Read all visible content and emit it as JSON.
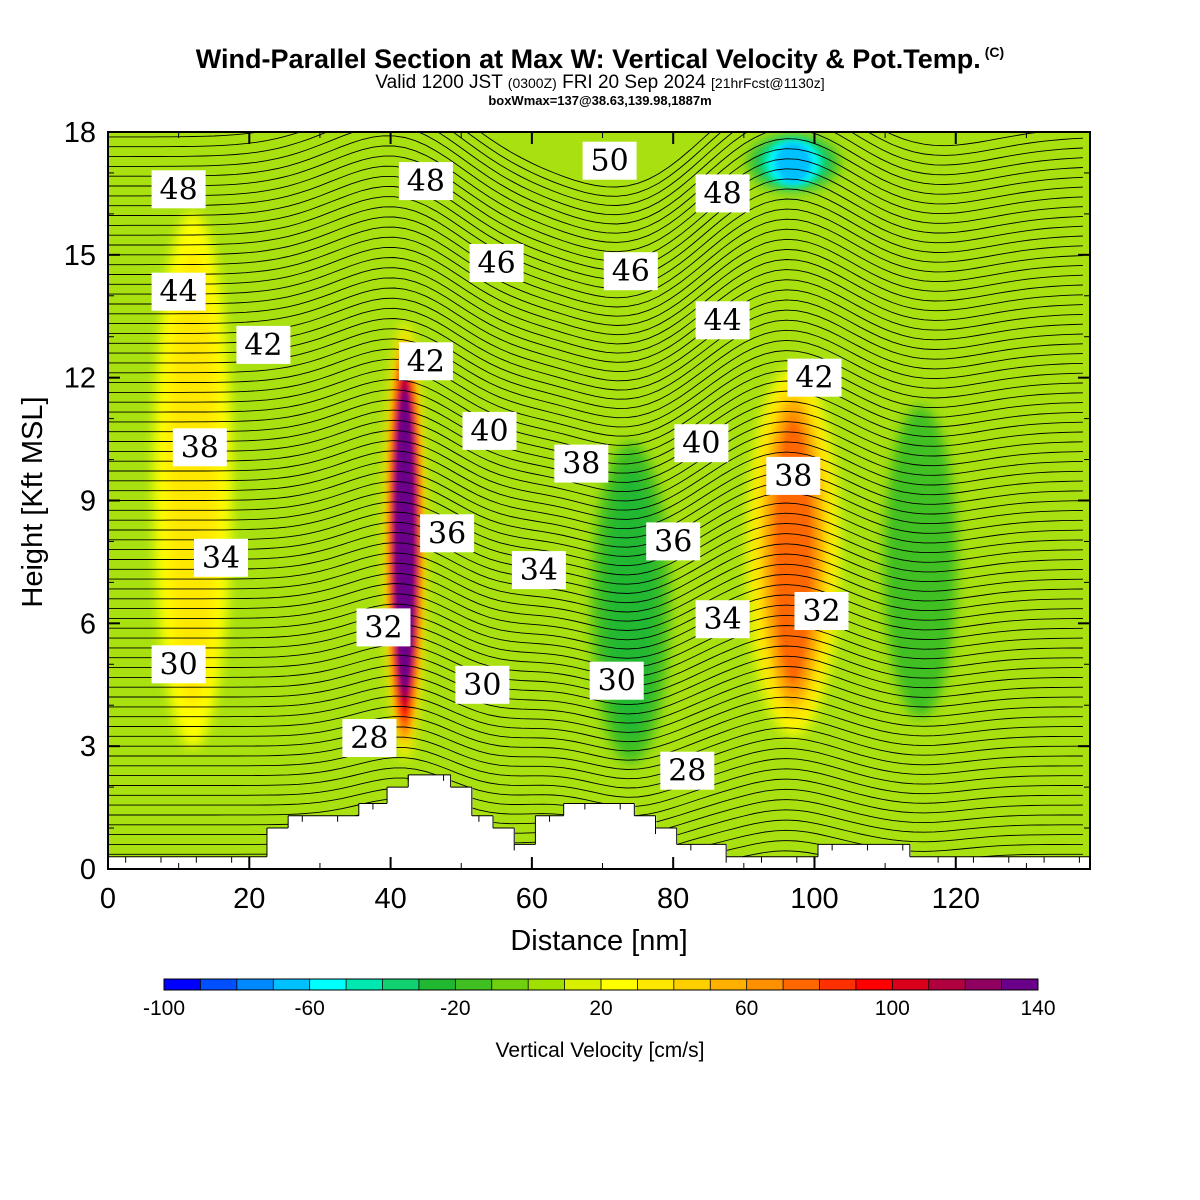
{
  "header": {
    "title": "Wind-Parallel Section at Max W: Vertical Velocity & Pot.Temp.",
    "copyright": "(C)",
    "valid_prefix": "Valid 1200 JST",
    "valid_utc": "(0300Z)",
    "valid_date": "FRI 20 Sep 2024",
    "forecast_info": "[21hrFcst@1130z]",
    "box_info": "boxWmax=137@38.63,139.98,1887m"
  },
  "chart_data": {
    "type": "heatmap",
    "xlabel": "Distance [nm]",
    "ylabel": "Height [Kft MSL]",
    "xlim": [
      0,
      139
    ],
    "ylim": [
      0,
      18
    ],
    "x_ticks": [
      "0",
      "20",
      "40",
      "60",
      "80",
      "100",
      "120"
    ],
    "y_ticks": [
      "0",
      "3",
      "6",
      "9",
      "12",
      "15",
      "18"
    ],
    "colorbar": {
      "label": "Vertical Velocity [cm/s]",
      "range": [
        -100,
        140
      ],
      "step": 10,
      "tick_labels": [
        "-100",
        "-60",
        "-20",
        "20",
        "60",
        "100",
        "140"
      ],
      "colors": [
        "#0000ff",
        "#0050ff",
        "#0088ff",
        "#00c0ff",
        "#00ffff",
        "#00e8b0",
        "#10d070",
        "#20b830",
        "#40c020",
        "#70d010",
        "#a0e000",
        "#d8f000",
        "#ffff00",
        "#ffe800",
        "#ffd000",
        "#ffb000",
        "#ff9000",
        "#ff6800",
        "#ff3000",
        "#ff0000",
        "#d8001a",
        "#b00040",
        "#900060",
        "#6a008a"
      ]
    },
    "vertical_velocity_features": [
      {
        "name": "updraft core",
        "x": 42,
        "z_min": 2.5,
        "z_max": 13.5,
        "max": 137
      },
      {
        "name": "updraft",
        "x": 97,
        "z_min": 3,
        "z_max": 12.5,
        "max": 70
      },
      {
        "name": "updraft",
        "x": 12,
        "z_min": 2,
        "z_max": 17,
        "max": 30
      },
      {
        "name": "downdraft",
        "x": 74,
        "z_min": 2,
        "z_max": 11,
        "max": -30
      },
      {
        "name": "downdraft",
        "x": 97,
        "z_min": 16.5,
        "z_max": 18,
        "max": -70
      },
      {
        "name": "downdraft",
        "x": 115,
        "z_min": 3,
        "z_max": 12,
        "max": -25
      }
    ],
    "theta_contour_labels": [
      {
        "value": "48",
        "x": 10,
        "z": 16.6
      },
      {
        "value": "48",
        "x": 45,
        "z": 16.8
      },
      {
        "value": "50",
        "x": 71,
        "z": 17.3
      },
      {
        "value": "48",
        "x": 87,
        "z": 16.5
      },
      {
        "value": "46",
        "x": 55,
        "z": 14.8
      },
      {
        "value": "46",
        "x": 74,
        "z": 14.6
      },
      {
        "value": "44",
        "x": 10,
        "z": 14.1
      },
      {
        "value": "44",
        "x": 87,
        "z": 13.4
      },
      {
        "value": "42",
        "x": 22,
        "z": 12.8
      },
      {
        "value": "42",
        "x": 45,
        "z": 12.4
      },
      {
        "value": "42",
        "x": 100,
        "z": 12
      },
      {
        "value": "40",
        "x": 54,
        "z": 10.7
      },
      {
        "value": "40",
        "x": 84,
        "z": 10.4
      },
      {
        "value": "38",
        "x": 13,
        "z": 10.3
      },
      {
        "value": "38",
        "x": 67,
        "z": 9.9
      },
      {
        "value": "38",
        "x": 97,
        "z": 9.6
      },
      {
        "value": "36",
        "x": 48,
        "z": 8.2
      },
      {
        "value": "36",
        "x": 80,
        "z": 8
      },
      {
        "value": "34",
        "x": 16,
        "z": 7.6
      },
      {
        "value": "34",
        "x": 61,
        "z": 7.3
      },
      {
        "value": "34",
        "x": 87,
        "z": 6.1
      },
      {
        "value": "32",
        "x": 39,
        "z": 5.9
      },
      {
        "value": "32",
        "x": 101,
        "z": 6.3
      },
      {
        "value": "30",
        "x": 10,
        "z": 5
      },
      {
        "value": "30",
        "x": 53,
        "z": 4.5
      },
      {
        "value": "30",
        "x": 72,
        "z": 4.6
      },
      {
        "value": "28",
        "x": 37,
        "z": 3.2
      },
      {
        "value": "28",
        "x": 82,
        "z": 2.4
      }
    ],
    "terrain": [
      {
        "x0": 0,
        "x1": 22.5,
        "z": 0.3
      },
      {
        "x0": 22.5,
        "x1": 25.5,
        "z": 1.0
      },
      {
        "x0": 25.5,
        "x1": 35.5,
        "z": 1.3
      },
      {
        "x0": 35.5,
        "x1": 39.5,
        "z": 1.6
      },
      {
        "x0": 39.5,
        "x1": 42.5,
        "z": 2.0
      },
      {
        "x0": 42.5,
        "x1": 48.5,
        "z": 2.3
      },
      {
        "x0": 48.5,
        "x1": 51.5,
        "z": 2.0
      },
      {
        "x0": 51.5,
        "x1": 54.5,
        "z": 1.3
      },
      {
        "x0": 54.5,
        "x1": 57.5,
        "z": 1.0
      },
      {
        "x0": 57.5,
        "x1": 60.5,
        "z": 0.6
      },
      {
        "x0": 60.5,
        "x1": 64.5,
        "z": 1.3
      },
      {
        "x0": 64.5,
        "x1": 74.5,
        "z": 1.6
      },
      {
        "x0": 74.5,
        "x1": 77.5,
        "z": 1.3
      },
      {
        "x0": 77.5,
        "x1": 80.5,
        "z": 1.0
      },
      {
        "x0": 80.5,
        "x1": 87.5,
        "z": 0.6
      },
      {
        "x0": 87.5,
        "x1": 100.5,
        "z": 0.3
      },
      {
        "x0": 100.5,
        "x1": 113.5,
        "z": 0.6
      },
      {
        "x0": 113.5,
        "x1": 139,
        "z": 0.3
      }
    ]
  }
}
